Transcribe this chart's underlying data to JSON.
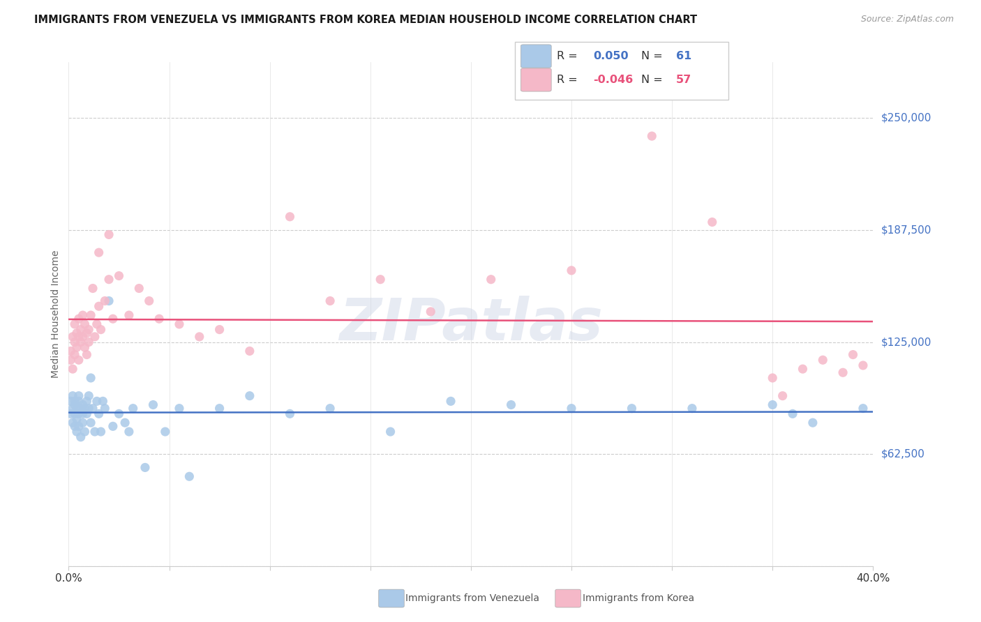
{
  "title": "IMMIGRANTS FROM VENEZUELA VS IMMIGRANTS FROM KOREA MEDIAN HOUSEHOLD INCOME CORRELATION CHART",
  "source": "Source: ZipAtlas.com",
  "ylabel": "Median Household Income",
  "xlim": [
    0.0,
    0.4
  ],
  "ylim": [
    0,
    281250
  ],
  "xtick_positions": [
    0.0,
    0.05,
    0.1,
    0.15,
    0.2,
    0.25,
    0.3,
    0.35,
    0.4
  ],
  "xtick_labels": [
    "0.0%",
    "",
    "",
    "",
    "",
    "",
    "",
    "",
    "40.0%"
  ],
  "ytick_positions": [
    62500,
    125000,
    187500,
    250000
  ],
  "ytick_labels": [
    "$62,500",
    "$125,000",
    "$187,500",
    "$250,000"
  ],
  "ytick_color": "#4472c4",
  "watermark": "ZIPatlas",
  "color_venezuela": "#aac9e8",
  "color_korea": "#f5b8c8",
  "trendline_color_venezuela": "#4472c4",
  "trendline_color_korea": "#e8517a",
  "legend_val_color_blue": "#4472c4",
  "legend_val_color_pink": "#e8517a",
  "background_color": "#ffffff",
  "scatter_size": 90,
  "bottom_legend_label1": "Immigrants from Venezuela",
  "bottom_legend_label2": "Immigrants from Korea",
  "venezuela_x": [
    0.001,
    0.001,
    0.002,
    0.002,
    0.002,
    0.003,
    0.003,
    0.003,
    0.003,
    0.004,
    0.004,
    0.004,
    0.005,
    0.005,
    0.005,
    0.005,
    0.006,
    0.006,
    0.007,
    0.007,
    0.007,
    0.008,
    0.008,
    0.009,
    0.009,
    0.01,
    0.01,
    0.011,
    0.011,
    0.012,
    0.013,
    0.014,
    0.015,
    0.016,
    0.017,
    0.018,
    0.02,
    0.022,
    0.025,
    0.028,
    0.03,
    0.032,
    0.038,
    0.042,
    0.048,
    0.055,
    0.06,
    0.075,
    0.09,
    0.11,
    0.13,
    0.16,
    0.19,
    0.22,
    0.25,
    0.28,
    0.31,
    0.35,
    0.36,
    0.37,
    0.395
  ],
  "venezuela_y": [
    92000,
    85000,
    88000,
    95000,
    80000,
    90000,
    85000,
    78000,
    92000,
    88000,
    82000,
    75000,
    92000,
    85000,
    78000,
    95000,
    88000,
    72000,
    90000,
    85000,
    80000,
    88000,
    75000,
    92000,
    85000,
    88000,
    95000,
    105000,
    80000,
    88000,
    75000,
    92000,
    85000,
    75000,
    92000,
    88000,
    148000,
    78000,
    85000,
    80000,
    75000,
    88000,
    55000,
    90000,
    75000,
    88000,
    50000,
    88000,
    95000,
    85000,
    88000,
    75000,
    92000,
    90000,
    88000,
    88000,
    88000,
    90000,
    85000,
    80000,
    88000
  ],
  "korea_x": [
    0.001,
    0.001,
    0.002,
    0.002,
    0.003,
    0.003,
    0.003,
    0.004,
    0.004,
    0.005,
    0.005,
    0.005,
    0.006,
    0.006,
    0.007,
    0.007,
    0.008,
    0.008,
    0.009,
    0.009,
    0.01,
    0.01,
    0.011,
    0.012,
    0.013,
    0.014,
    0.015,
    0.016,
    0.018,
    0.02,
    0.022,
    0.025,
    0.03,
    0.035,
    0.04,
    0.045,
    0.055,
    0.065,
    0.075,
    0.09,
    0.11,
    0.13,
    0.155,
    0.18,
    0.21,
    0.25,
    0.29,
    0.32,
    0.35,
    0.355,
    0.365,
    0.375,
    0.385,
    0.39,
    0.395,
    0.015,
    0.02
  ],
  "korea_y": [
    120000,
    115000,
    128000,
    110000,
    125000,
    135000,
    118000,
    130000,
    122000,
    128000,
    138000,
    115000,
    132000,
    125000,
    140000,
    128000,
    135000,
    122000,
    130000,
    118000,
    125000,
    132000,
    140000,
    155000,
    128000,
    135000,
    145000,
    132000,
    148000,
    160000,
    138000,
    162000,
    140000,
    155000,
    148000,
    138000,
    135000,
    128000,
    132000,
    120000,
    195000,
    148000,
    160000,
    142000,
    160000,
    165000,
    240000,
    192000,
    105000,
    95000,
    110000,
    115000,
    108000,
    118000,
    112000,
    175000,
    185000
  ]
}
